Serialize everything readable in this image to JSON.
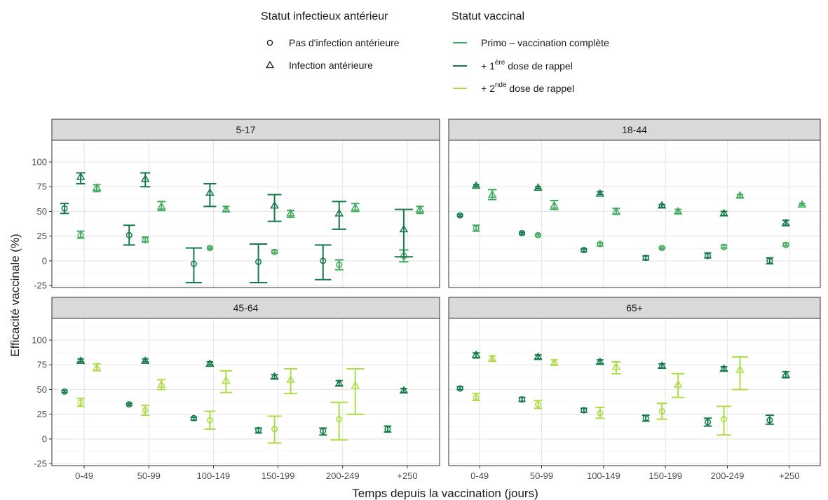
{
  "chart_data": {
    "type": "scatter",
    "subtype": "point-with-error-bars, faceted 2x2",
    "xlabel": "Temps depuis la vaccination (jours)",
    "ylabel": "Efficacité vaccinale (%)",
    "ylim": [
      -27,
      122
    ],
    "yticks": [
      "-25",
      "0",
      "25",
      "50",
      "75",
      "100"
    ],
    "categories": [
      "0-49",
      "50-99",
      "100-149",
      "150-199",
      "200-249",
      "+250"
    ],
    "grid": true,
    "legend": {
      "placement": "top",
      "shape_title": "Statut infectieux antérieur",
      "shape_items": [
        {
          "key": "no_inf",
          "label": "Pas d'infection antérieure",
          "glyph": "circle"
        },
        {
          "key": "inf",
          "label": "Infection antérieure",
          "glyph": "triangle"
        }
      ],
      "color_title": "Statut vaccinal",
      "color_items": [
        {
          "key": "primo",
          "pre": "Primo – vaccination complète",
          "sup": "",
          "post": "",
          "color": "#41ab5d"
        },
        {
          "key": "r1",
          "pre": "+ 1",
          "sup": "ère",
          "post": " dose de rappel",
          "color": "#137a48"
        },
        {
          "key": "r2",
          "pre": "+ 2",
          "sup": "nde",
          "post": " dose de rappel",
          "color": "#addd43"
        }
      ]
    },
    "panels": [
      {
        "title": "5-17",
        "points": [
          {
            "cat": 0,
            "series": "r1",
            "shape": "circle",
            "y": 53,
            "lo": 48,
            "hi": 58
          },
          {
            "cat": 0,
            "series": "primo",
            "shape": "circle",
            "y": 26,
            "lo": 23,
            "hi": 30
          },
          {
            "cat": 0,
            "series": "r1",
            "shape": "triangle",
            "y": 85,
            "lo": 78,
            "hi": 89
          },
          {
            "cat": 0,
            "series": "primo",
            "shape": "triangle",
            "y": 74,
            "lo": 70,
            "hi": 77
          },
          {
            "cat": 1,
            "series": "r1",
            "shape": "circle",
            "y": 26,
            "lo": 16,
            "hi": 36
          },
          {
            "cat": 1,
            "series": "primo",
            "shape": "circle",
            "y": 21,
            "lo": 19,
            "hi": 24
          },
          {
            "cat": 1,
            "series": "r1",
            "shape": "triangle",
            "y": 83,
            "lo": 75,
            "hi": 89
          },
          {
            "cat": 1,
            "series": "primo",
            "shape": "triangle",
            "y": 55,
            "lo": 51,
            "hi": 60
          },
          {
            "cat": 2,
            "series": "r1",
            "shape": "circle",
            "y": -3,
            "lo": -22,
            "hi": 13
          },
          {
            "cat": 2,
            "series": "primo",
            "shape": "circle",
            "y": 13,
            "lo": 12,
            "hi": 14
          },
          {
            "cat": 2,
            "series": "r1",
            "shape": "triangle",
            "y": 69,
            "lo": 55,
            "hi": 78
          },
          {
            "cat": 2,
            "series": "primo",
            "shape": "triangle",
            "y": 52,
            "lo": 50,
            "hi": 55
          },
          {
            "cat": 3,
            "series": "r1",
            "shape": "circle",
            "y": -1,
            "lo": -22,
            "hi": 17
          },
          {
            "cat": 3,
            "series": "primo",
            "shape": "circle",
            "y": 9,
            "lo": 8,
            "hi": 11
          },
          {
            "cat": 3,
            "series": "r1",
            "shape": "triangle",
            "y": 56,
            "lo": 40,
            "hi": 67
          },
          {
            "cat": 3,
            "series": "primo",
            "shape": "triangle",
            "y": 48,
            "lo": 44,
            "hi": 51
          },
          {
            "cat": 4,
            "series": "r1",
            "shape": "circle",
            "y": 0,
            "lo": -19,
            "hi": 16
          },
          {
            "cat": 4,
            "series": "primo",
            "shape": "circle",
            "y": -4,
            "lo": -9,
            "hi": 1
          },
          {
            "cat": 4,
            "series": "r1",
            "shape": "triangle",
            "y": 48,
            "lo": 32,
            "hi": 60
          },
          {
            "cat": 4,
            "series": "primo",
            "shape": "triangle",
            "y": 54,
            "lo": 50,
            "hi": 58
          },
          {
            "cat": 5,
            "series": "primo",
            "shape": "circle",
            "y": 5,
            "lo": -1,
            "hi": 11
          },
          {
            "cat": 5,
            "series": "r1",
            "shape": "triangle",
            "y": 32,
            "lo": 4,
            "hi": 52
          },
          {
            "cat": 5,
            "series": "primo",
            "shape": "triangle",
            "y": 52,
            "lo": 48,
            "hi": 55
          }
        ]
      },
      {
        "title": "18-44",
        "points": [
          {
            "cat": 0,
            "series": "r1",
            "shape": "circle",
            "y": 46,
            "lo": 45,
            "hi": 47
          },
          {
            "cat": 0,
            "series": "primo",
            "shape": "circle",
            "y": 33,
            "lo": 30,
            "hi": 36
          },
          {
            "cat": 0,
            "series": "r1",
            "shape": "triangle",
            "y": 76,
            "lo": 75,
            "hi": 77
          },
          {
            "cat": 0,
            "series": "primo",
            "shape": "triangle",
            "y": 67,
            "lo": 62,
            "hi": 72
          },
          {
            "cat": 1,
            "series": "r1",
            "shape": "circle",
            "y": 28,
            "lo": 27,
            "hi": 29
          },
          {
            "cat": 1,
            "series": "primo",
            "shape": "circle",
            "y": 26,
            "lo": 25,
            "hi": 27
          },
          {
            "cat": 1,
            "series": "r1",
            "shape": "triangle",
            "y": 74,
            "lo": 73,
            "hi": 75
          },
          {
            "cat": 1,
            "series": "primo",
            "shape": "triangle",
            "y": 56,
            "lo": 52,
            "hi": 61
          },
          {
            "cat": 2,
            "series": "r1",
            "shape": "circle",
            "y": 11,
            "lo": 9,
            "hi": 12
          },
          {
            "cat": 2,
            "series": "primo",
            "shape": "circle",
            "y": 17,
            "lo": 15,
            "hi": 18
          },
          {
            "cat": 2,
            "series": "r1",
            "shape": "triangle",
            "y": 68,
            "lo": 67,
            "hi": 70
          },
          {
            "cat": 2,
            "series": "primo",
            "shape": "triangle",
            "y": 50,
            "lo": 47,
            "hi": 53
          },
          {
            "cat": 3,
            "series": "r1",
            "shape": "circle",
            "y": 3,
            "lo": 1,
            "hi": 5
          },
          {
            "cat": 3,
            "series": "primo",
            "shape": "circle",
            "y": 13,
            "lo": 12,
            "hi": 14
          },
          {
            "cat": 3,
            "series": "r1",
            "shape": "triangle",
            "y": 56,
            "lo": 54,
            "hi": 57
          },
          {
            "cat": 3,
            "series": "primo",
            "shape": "triangle",
            "y": 50,
            "lo": 48,
            "hi": 52
          },
          {
            "cat": 4,
            "series": "r1",
            "shape": "circle",
            "y": 5,
            "lo": 3,
            "hi": 8
          },
          {
            "cat": 4,
            "series": "primo",
            "shape": "circle",
            "y": 14,
            "lo": 13,
            "hi": 16
          },
          {
            "cat": 4,
            "series": "r1",
            "shape": "triangle",
            "y": 48,
            "lo": 46,
            "hi": 50
          },
          {
            "cat": 4,
            "series": "primo",
            "shape": "triangle",
            "y": 66,
            "lo": 64,
            "hi": 67
          },
          {
            "cat": 5,
            "series": "r1",
            "shape": "circle",
            "y": 0,
            "lo": -3,
            "hi": 3
          },
          {
            "cat": 5,
            "series": "primo",
            "shape": "circle",
            "y": 16,
            "lo": 15,
            "hi": 18
          },
          {
            "cat": 5,
            "series": "r1",
            "shape": "triangle",
            "y": 38,
            "lo": 36,
            "hi": 41
          },
          {
            "cat": 5,
            "series": "primo",
            "shape": "triangle",
            "y": 57,
            "lo": 56,
            "hi": 58
          }
        ]
      },
      {
        "title": "45-64",
        "points": [
          {
            "cat": 0,
            "series": "r1",
            "shape": "circle",
            "y": 48,
            "lo": 47,
            "hi": 49
          },
          {
            "cat": 0,
            "series": "r2",
            "shape": "circle",
            "y": 37,
            "lo": 33,
            "hi": 41
          },
          {
            "cat": 0,
            "series": "r1",
            "shape": "triangle",
            "y": 79,
            "lo": 78,
            "hi": 81
          },
          {
            "cat": 0,
            "series": "r2",
            "shape": "triangle",
            "y": 72,
            "lo": 69,
            "hi": 76
          },
          {
            "cat": 1,
            "series": "r1",
            "shape": "circle",
            "y": 35,
            "lo": 34,
            "hi": 36
          },
          {
            "cat": 1,
            "series": "r2",
            "shape": "circle",
            "y": 29,
            "lo": 24,
            "hi": 34
          },
          {
            "cat": 1,
            "series": "r1",
            "shape": "triangle",
            "y": 79,
            "lo": 78,
            "hi": 81
          },
          {
            "cat": 1,
            "series": "r2",
            "shape": "triangle",
            "y": 55,
            "lo": 50,
            "hi": 60
          },
          {
            "cat": 2,
            "series": "r1",
            "shape": "circle",
            "y": 21,
            "lo": 19,
            "hi": 22
          },
          {
            "cat": 2,
            "series": "r2",
            "shape": "circle",
            "y": 19,
            "lo": 10,
            "hi": 28
          },
          {
            "cat": 2,
            "series": "r1",
            "shape": "triangle",
            "y": 76,
            "lo": 75,
            "hi": 78
          },
          {
            "cat": 2,
            "series": "r2",
            "shape": "triangle",
            "y": 59,
            "lo": 47,
            "hi": 69
          },
          {
            "cat": 3,
            "series": "r1",
            "shape": "circle",
            "y": 9,
            "lo": 6,
            "hi": 11
          },
          {
            "cat": 3,
            "series": "r2",
            "shape": "circle",
            "y": 10,
            "lo": -4,
            "hi": 23
          },
          {
            "cat": 3,
            "series": "r1",
            "shape": "triangle",
            "y": 63,
            "lo": 61,
            "hi": 65
          },
          {
            "cat": 3,
            "series": "r2",
            "shape": "triangle",
            "y": 60,
            "lo": 46,
            "hi": 71
          },
          {
            "cat": 4,
            "series": "r1",
            "shape": "circle",
            "y": 8,
            "lo": 4,
            "hi": 11
          },
          {
            "cat": 4,
            "series": "r2",
            "shape": "circle",
            "y": 20,
            "lo": -1,
            "hi": 37
          },
          {
            "cat": 4,
            "series": "r1",
            "shape": "triangle",
            "y": 56,
            "lo": 54,
            "hi": 59
          },
          {
            "cat": 4,
            "series": "r2",
            "shape": "triangle",
            "y": 54,
            "lo": 25,
            "hi": 71
          },
          {
            "cat": 5,
            "series": "r1",
            "shape": "circle",
            "y": 10,
            "lo": 7,
            "hi": 13
          },
          {
            "cat": 5,
            "series": "r1",
            "shape": "triangle",
            "y": 49,
            "lo": 47,
            "hi": 51
          }
        ]
      },
      {
        "title": "65+",
        "points": [
          {
            "cat": 0,
            "series": "r1",
            "shape": "circle",
            "y": 51,
            "lo": 50,
            "hi": 53
          },
          {
            "cat": 0,
            "series": "r2",
            "shape": "circle",
            "y": 42,
            "lo": 39,
            "hi": 46
          },
          {
            "cat": 0,
            "series": "r1",
            "shape": "triangle",
            "y": 85,
            "lo": 82,
            "hi": 87
          },
          {
            "cat": 0,
            "series": "r2",
            "shape": "triangle",
            "y": 81,
            "lo": 79,
            "hi": 84
          },
          {
            "cat": 1,
            "series": "r1",
            "shape": "circle",
            "y": 40,
            "lo": 38,
            "hi": 42
          },
          {
            "cat": 1,
            "series": "r2",
            "shape": "circle",
            "y": 35,
            "lo": 31,
            "hi": 39
          },
          {
            "cat": 1,
            "series": "r1",
            "shape": "triangle",
            "y": 83,
            "lo": 81,
            "hi": 85
          },
          {
            "cat": 1,
            "series": "r2",
            "shape": "triangle",
            "y": 77,
            "lo": 75,
            "hi": 80
          },
          {
            "cat": 2,
            "series": "r1",
            "shape": "circle",
            "y": 29,
            "lo": 27,
            "hi": 31
          },
          {
            "cat": 2,
            "series": "r2",
            "shape": "circle",
            "y": 26,
            "lo": 21,
            "hi": 32
          },
          {
            "cat": 2,
            "series": "r1",
            "shape": "triangle",
            "y": 78,
            "lo": 76,
            "hi": 80
          },
          {
            "cat": 2,
            "series": "r2",
            "shape": "triangle",
            "y": 73,
            "lo": 66,
            "hi": 78
          },
          {
            "cat": 3,
            "series": "r1",
            "shape": "circle",
            "y": 21,
            "lo": 18,
            "hi": 24
          },
          {
            "cat": 3,
            "series": "r2",
            "shape": "circle",
            "y": 28,
            "lo": 20,
            "hi": 36
          },
          {
            "cat": 3,
            "series": "r1",
            "shape": "triangle",
            "y": 74,
            "lo": 72,
            "hi": 76
          },
          {
            "cat": 3,
            "series": "r2",
            "shape": "triangle",
            "y": 55,
            "lo": 42,
            "hi": 66
          },
          {
            "cat": 4,
            "series": "r1",
            "shape": "circle",
            "y": 17,
            "lo": 13,
            "hi": 21
          },
          {
            "cat": 4,
            "series": "r2",
            "shape": "circle",
            "y": 20,
            "lo": 4,
            "hi": 33
          },
          {
            "cat": 4,
            "series": "r1",
            "shape": "triangle",
            "y": 71,
            "lo": 69,
            "hi": 73
          },
          {
            "cat": 4,
            "series": "r2",
            "shape": "triangle",
            "y": 70,
            "lo": 50,
            "hi": 83
          },
          {
            "cat": 5,
            "series": "r1",
            "shape": "circle",
            "y": 19,
            "lo": 15,
            "hi": 24
          },
          {
            "cat": 5,
            "series": "r1",
            "shape": "triangle",
            "y": 65,
            "lo": 62,
            "hi": 68
          }
        ]
      }
    ]
  }
}
